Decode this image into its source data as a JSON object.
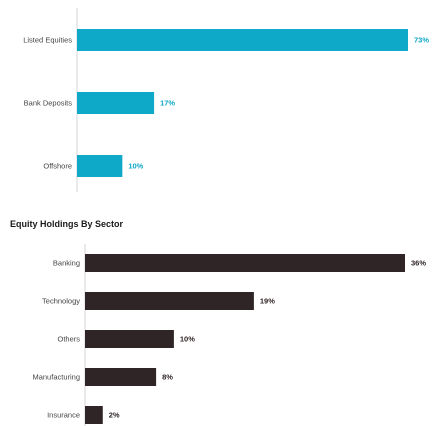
{
  "colors": {
    "chart1_bar": "#0ea8c8",
    "chart1_value": "#0ea8c8",
    "chart2_bar": "#2f2426",
    "chart2_value": "#2a1f1f",
    "axis": "#d6d6d6"
  },
  "chart_data": [
    {
      "type": "bar",
      "orientation": "horizontal",
      "title": "",
      "categories": [
        "Listed Equities",
        "Bank Deposits",
        "Offshore"
      ],
      "values": [
        73,
        17,
        10
      ],
      "value_labels": [
        "73%",
        "17%",
        "10%"
      ],
      "xlim": [
        0,
        100
      ],
      "grid": false,
      "legend": "none"
    },
    {
      "type": "bar",
      "orientation": "horizontal",
      "title": "Equity Holdings By Sector",
      "categories": [
        "Banking",
        "Technology",
        "Others",
        "Manufacturing",
        "Insurance"
      ],
      "values": [
        36,
        19,
        10,
        8,
        2
      ],
      "value_labels": [
        "36%",
        "19%",
        "10%",
        "8%",
        "2%"
      ],
      "xlim": [
        0,
        100
      ],
      "grid": false,
      "legend": "none"
    }
  ]
}
